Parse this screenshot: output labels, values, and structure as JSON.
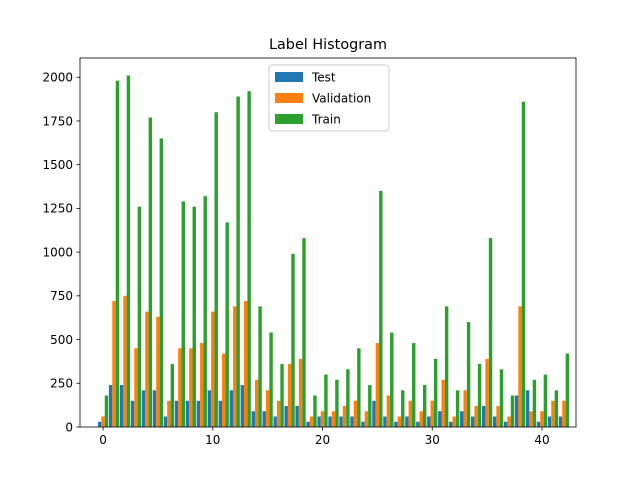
{
  "chart_data": {
    "type": "bar",
    "title": "Label Histogram",
    "xlabel": "",
    "ylabel": "",
    "xlim": [
      -2.1,
      43.1
    ],
    "ylim": [
      0,
      2110
    ],
    "x_ticks": [
      0,
      10,
      20,
      30,
      40
    ],
    "y_ticks": [
      0,
      250,
      500,
      750,
      1000,
      1250,
      1500,
      1750,
      2000
    ],
    "grid": false,
    "legend_position": "top-center",
    "categories": [
      0,
      1,
      2,
      3,
      4,
      5,
      6,
      7,
      8,
      9,
      10,
      11,
      12,
      13,
      14,
      15,
      16,
      17,
      18,
      19,
      20,
      21,
      22,
      23,
      24,
      25,
      26,
      27,
      28,
      29,
      30,
      31,
      32,
      33,
      34,
      35,
      36,
      37,
      38,
      39,
      40,
      41,
      42
    ],
    "series": [
      {
        "name": "Test",
        "color": "#1f77b4",
        "values": [
          30,
          240,
          240,
          150,
          210,
          210,
          60,
          150,
          150,
          150,
          210,
          150,
          210,
          240,
          90,
          90,
          60,
          120,
          120,
          30,
          60,
          60,
          60,
          60,
          30,
          150,
          60,
          30,
          60,
          30,
          60,
          90,
          30,
          90,
          60,
          120,
          60,
          30,
          180,
          210,
          30,
          60,
          60
        ]
      },
      {
        "name": "Validation",
        "color": "#ff7f0e",
        "values": [
          60,
          720,
          750,
          450,
          660,
          630,
          150,
          450,
          450,
          480,
          660,
          420,
          690,
          720,
          270,
          210,
          150,
          360,
          390,
          60,
          90,
          90,
          120,
          150,
          90,
          480,
          180,
          60,
          150,
          90,
          150,
          270,
          60,
          210,
          120,
          390,
          120,
          60,
          690,
          90,
          90,
          150,
          150
        ]
      },
      {
        "name": "Train",
        "color": "#2ca02c",
        "values": [
          180,
          1980,
          2010,
          1260,
          1770,
          1650,
          360,
          1290,
          1260,
          1320,
          1800,
          1170,
          1890,
          1920,
          690,
          540,
          360,
          990,
          1080,
          180,
          300,
          270,
          330,
          450,
          240,
          1350,
          540,
          210,
          480,
          240,
          390,
          690,
          210,
          600,
          360,
          1080,
          330,
          180,
          1860,
          270,
          300,
          210,
          420
        ]
      }
    ]
  }
}
